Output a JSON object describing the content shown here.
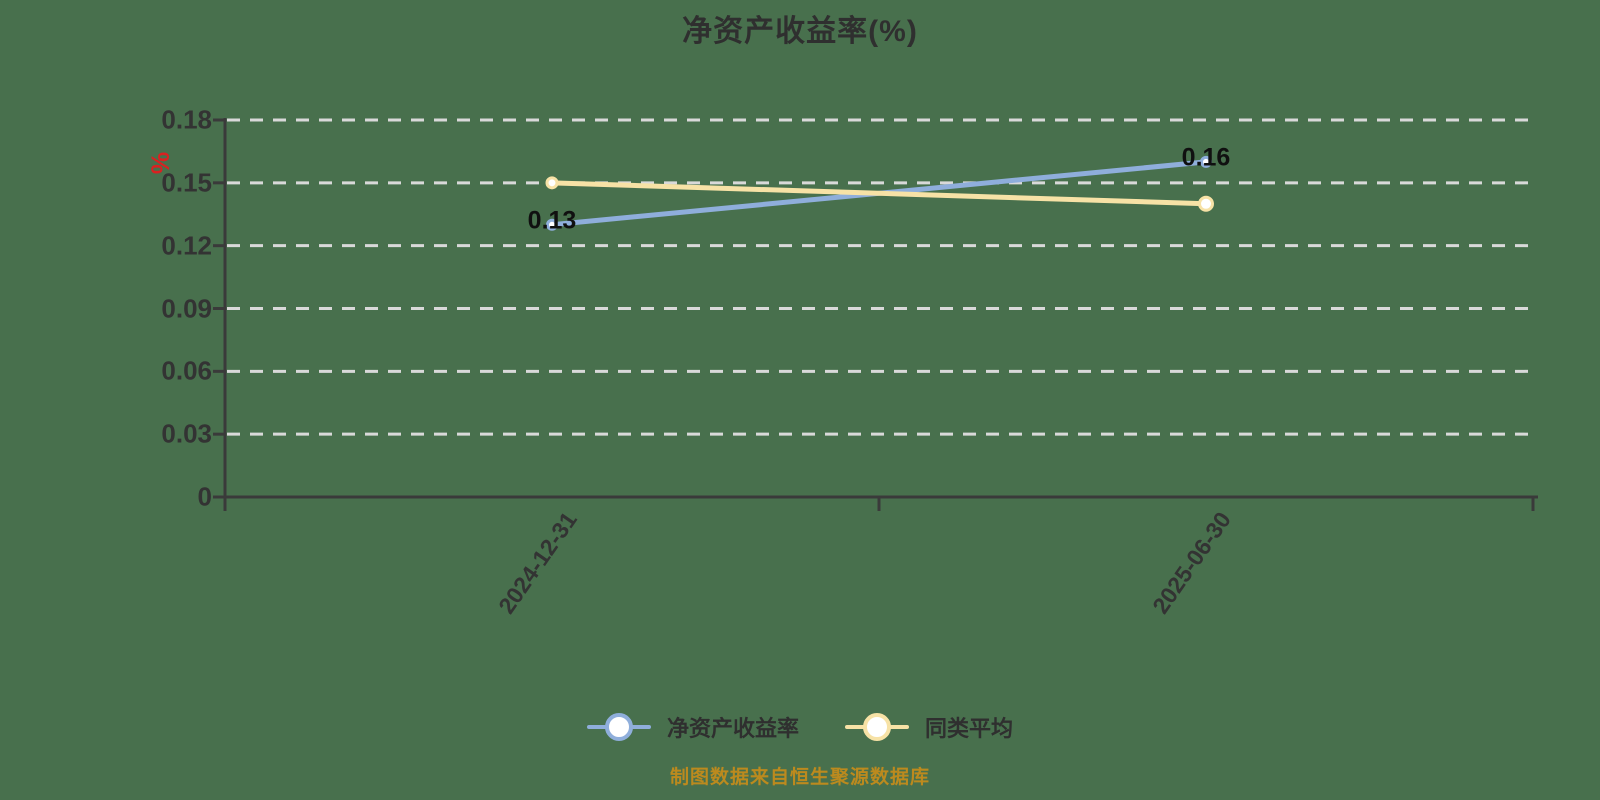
{
  "title": "净资产收益率(%)",
  "background_color": "#48704D",
  "text_color": "#2f2f2f",
  "y_axis": {
    "unit_label": "%",
    "unit_color": "#D92121",
    "tick_values": [
      0,
      0.03,
      0.06,
      0.09,
      0.12,
      0.15,
      0.18
    ],
    "tick_labels": [
      "0",
      "0.03",
      "0.06",
      "0.09",
      "0.12",
      "0.15",
      "0.18"
    ],
    "axis_color": "#3a3a3a",
    "gridline_color": "#d9d9d9",
    "gridline_style": "dashed"
  },
  "x_axis": {
    "categories": [
      "2024-12-31",
      "2025-06-30"
    ],
    "axis_color": "#3a3a3a"
  },
  "chart_data": {
    "type": "line",
    "x": [
      "2024-12-31",
      "2025-06-30"
    ],
    "series": [
      {
        "name": "净资产收益率",
        "color": "#8FAEDB",
        "values": [
          0.13,
          0.16
        ],
        "point_labels": [
          "0.13",
          "0.16"
        ]
      },
      {
        "name": "同类平均",
        "color": "#F7E2A6",
        "values": [
          0.15,
          0.14
        ],
        "point_labels": [
          "",
          ""
        ]
      }
    ],
    "ylim": [
      0,
      0.18
    ],
    "grid": "horizontal dashed",
    "legend_position": "bottom",
    "title": "净资产收益率(%)"
  },
  "legend": {
    "items": [
      {
        "label": "净资产收益率",
        "color": "#8FAEDB"
      },
      {
        "label": "同类平均",
        "color": "#F7E2A6"
      }
    ]
  },
  "footer": {
    "text": "制图数据来自恒生聚源数据库",
    "color": "#BC8A1E"
  }
}
